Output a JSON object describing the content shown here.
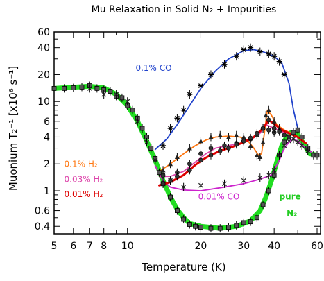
{
  "chart_data": {
    "type": "scatter",
    "title": "Mu Relaxation in Solid N₂ + Impurities",
    "xlabel": "Temperature (K)",
    "ylabel": "Muonium T₂⁻¹ [x10⁶ s⁻¹]",
    "x_scale": "log",
    "y_scale": "log",
    "xlim": [
      5,
      62
    ],
    "ylim": [
      0.33,
      60
    ],
    "x_ticks": [
      5,
      6,
      7,
      8,
      9,
      10,
      20,
      30,
      40,
      50,
      60
    ],
    "x_tick_labels": [
      "5",
      "6",
      "7",
      "8",
      "10",
      "20",
      "30",
      "40",
      "60"
    ],
    "x_tick_label_values": [
      5,
      6,
      7,
      8,
      10,
      20,
      30,
      40,
      60
    ],
    "y_ticks": [
      0.4,
      0.5,
      0.6,
      0.7,
      0.8,
      0.9,
      1,
      2,
      3,
      4,
      5,
      6,
      7,
      8,
      9,
      10,
      20,
      30,
      40,
      50,
      60
    ],
    "y_tick_labels": [
      "0.4",
      "0.6",
      "1",
      "2",
      "4",
      "6",
      "10",
      "20",
      "40",
      "60"
    ],
    "y_tick_label_values": [
      0.4,
      0.6,
      1,
      2,
      4,
      6,
      10,
      20,
      40,
      60
    ],
    "grid": false,
    "series": [
      {
        "name": "pure N₂",
        "color": "#22dd22",
        "marker": "square",
        "label_lines": [
          "pure",
          "N₂"
        ],
        "points": [
          [
            5,
            14
          ],
          [
            5.5,
            14
          ],
          [
            6,
            14.2
          ],
          [
            6.5,
            14.5
          ],
          [
            7,
            15
          ],
          [
            7.5,
            14
          ],
          [
            8,
            13.5
          ],
          [
            8.5,
            13
          ],
          [
            9,
            11.5
          ],
          [
            9.5,
            11
          ],
          [
            10,
            9
          ],
          [
            10.5,
            8
          ],
          [
            11,
            6.5
          ],
          [
            11.5,
            5
          ],
          [
            12,
            4
          ],
          [
            12.5,
            3
          ],
          [
            13,
            2.3
          ],
          [
            13.5,
            1.6
          ],
          [
            14,
            1.2
          ],
          [
            15,
            0.85
          ],
          [
            16,
            0.6
          ],
          [
            17,
            0.48
          ],
          [
            18,
            0.42
          ],
          [
            19,
            0.4
          ],
          [
            20,
            0.39
          ],
          [
            22,
            0.38
          ],
          [
            24,
            0.38
          ],
          [
            26,
            0.39
          ],
          [
            28,
            0.41
          ],
          [
            30,
            0.44
          ],
          [
            32,
            0.45
          ],
          [
            34,
            0.5
          ],
          [
            36,
            0.7
          ],
          [
            38,
            1.0
          ],
          [
            40,
            1.5
          ],
          [
            42,
            2.5
          ],
          [
            44,
            3.5
          ],
          [
            46,
            4.0
          ],
          [
            48,
            4.5
          ],
          [
            50,
            4.8
          ],
          [
            52,
            4.0
          ],
          [
            55,
            3.0
          ],
          [
            58,
            2.5
          ],
          [
            60,
            2.5
          ]
        ],
        "curve": [
          [
            5,
            14
          ],
          [
            7,
            14.8
          ],
          [
            8,
            14.2
          ],
          [
            9,
            12
          ],
          [
            10,
            9
          ],
          [
            11,
            6
          ],
          [
            12,
            3.6
          ],
          [
            13,
            2.2
          ],
          [
            14,
            1.3
          ],
          [
            15,
            0.85
          ],
          [
            16,
            0.62
          ],
          [
            17,
            0.5
          ],
          [
            18,
            0.43
          ],
          [
            20,
            0.4
          ],
          [
            24,
            0.38
          ],
          [
            28,
            0.4
          ],
          [
            32,
            0.46
          ],
          [
            35,
            0.6
          ],
          [
            37,
            0.85
          ],
          [
            39,
            1.3
          ],
          [
            41,
            2.1
          ],
          [
            43,
            3.2
          ],
          [
            45,
            4.0
          ],
          [
            47,
            4.5
          ],
          [
            50,
            4.3
          ],
          [
            53,
            3.3
          ],
          [
            56,
            2.6
          ],
          [
            60,
            2.5
          ]
        ]
      },
      {
        "name": "0.1% CO",
        "color": "#2244cc",
        "marker": "star",
        "points": [
          [
            14,
            3.2
          ],
          [
            15,
            5
          ],
          [
            16,
            6.5
          ],
          [
            17,
            8
          ],
          [
            18,
            12
          ],
          [
            20,
            15
          ],
          [
            22,
            20
          ],
          [
            25,
            26
          ],
          [
            28,
            32
          ],
          [
            30,
            38
          ],
          [
            32,
            40
          ],
          [
            35,
            36
          ],
          [
            38,
            34
          ],
          [
            40,
            32
          ],
          [
            42,
            28
          ],
          [
            44,
            20
          ]
        ],
        "curve": [
          [
            13,
            2.9
          ],
          [
            14.5,
            3.8
          ],
          [
            16,
            5.5
          ],
          [
            18,
            9
          ],
          [
            20,
            14
          ],
          [
            23,
            22
          ],
          [
            26,
            30
          ],
          [
            30,
            37
          ],
          [
            33,
            38
          ],
          [
            36,
            36
          ],
          [
            40,
            32
          ],
          [
            43,
            27
          ],
          [
            46,
            16
          ],
          [
            48,
            8
          ],
          [
            50,
            5
          ]
        ]
      },
      {
        "name": "0.01% CO",
        "color": "#cc22cc",
        "marker": "x",
        "points": [
          [
            7,
            14
          ],
          [
            8,
            12
          ],
          [
            9,
            12
          ],
          [
            10,
            10
          ],
          [
            11,
            6
          ],
          [
            12,
            3.5
          ],
          [
            13,
            2.2
          ],
          [
            14,
            1.5
          ],
          [
            15,
            1.3
          ],
          [
            17,
            1.1
          ],
          [
            20,
            1.15
          ],
          [
            25,
            1.2
          ],
          [
            30,
            1.3
          ],
          [
            35,
            1.4
          ],
          [
            38,
            1.5
          ],
          [
            40,
            1.7
          ],
          [
            42,
            2.5
          ],
          [
            44,
            3.2
          ],
          [
            46,
            3.6
          ],
          [
            48,
            3.8
          ],
          [
            50,
            3.5
          ],
          [
            52,
            3.2
          ],
          [
            55,
            2.8
          ]
        ],
        "curve": [
          [
            13,
            1.9
          ],
          [
            14,
            1.3
          ],
          [
            15,
            1.1
          ],
          [
            17,
            1.02
          ],
          [
            20,
            1.0
          ],
          [
            25,
            1.1
          ],
          [
            30,
            1.2
          ],
          [
            35,
            1.35
          ],
          [
            39,
            1.5
          ],
          [
            42,
            2.2
          ],
          [
            44,
            3.0
          ],
          [
            46,
            3.5
          ],
          [
            48,
            3.8
          ],
          [
            50,
            3.6
          ],
          [
            54,
            3.0
          ],
          [
            57,
            2.7
          ]
        ]
      },
      {
        "name": "0.03% H₂",
        "color": "#dd44aa",
        "marker": "circle",
        "points": [
          [
            14,
            1.5
          ],
          [
            16,
            1.6
          ],
          [
            18,
            2.0
          ],
          [
            20,
            2.6
          ],
          [
            22,
            3.0
          ],
          [
            25,
            3.2
          ],
          [
            28,
            3.4
          ],
          [
            30,
            3.6
          ],
          [
            32,
            3.8
          ],
          [
            34,
            4.2
          ],
          [
            36,
            5.0
          ],
          [
            38,
            4.8
          ],
          [
            40,
            4.5
          ]
        ],
        "curve": [
          [
            13.5,
            1.45
          ],
          [
            15,
            1.45
          ],
          [
            17,
            1.65
          ],
          [
            19,
            2.1
          ],
          [
            21,
            2.6
          ],
          [
            23,
            3.0
          ],
          [
            26,
            3.2
          ],
          [
            29,
            3.4
          ],
          [
            32,
            3.7
          ],
          [
            35,
            4.4
          ],
          [
            37,
            5.5
          ],
          [
            40,
            5.0
          ],
          [
            44,
            4.5
          ],
          [
            48,
            4.2
          ]
        ]
      },
      {
        "name": "0.1% H₂",
        "color": "#ff7711",
        "marker": "triangle",
        "points": [
          [
            14,
            1.7
          ],
          [
            15,
            2.0
          ],
          [
            16,
            2.4
          ],
          [
            18,
            3.0
          ],
          [
            20,
            3.6
          ],
          [
            22,
            4.0
          ],
          [
            24,
            4.2
          ],
          [
            26,
            4.0
          ],
          [
            28,
            4.2
          ],
          [
            30,
            4.0
          ],
          [
            32,
            3.2
          ],
          [
            34,
            2.5
          ],
          [
            35,
            2.4
          ],
          [
            36,
            3.5
          ],
          [
            37,
            7.0
          ],
          [
            38,
            8.0
          ],
          [
            40,
            6.0
          ],
          [
            42,
            5.0
          ]
        ],
        "curve": [
          [
            13.5,
            1.65
          ],
          [
            15,
            2.0
          ],
          [
            17,
            2.6
          ],
          [
            19,
            3.2
          ],
          [
            21,
            3.7
          ],
          [
            23,
            4.0
          ],
          [
            26,
            4.1
          ],
          [
            29,
            4.0
          ],
          [
            31,
            3.7
          ],
          [
            33,
            3.0
          ],
          [
            34.5,
            2.5
          ],
          [
            35.5,
            2.6
          ],
          [
            36.5,
            4.5
          ],
          [
            37.5,
            8.0
          ],
          [
            39,
            7.0
          ],
          [
            41,
            5.5
          ],
          [
            44,
            4.8
          ],
          [
            48,
            4.3
          ]
        ]
      },
      {
        "name": "0.01% H₂",
        "color": "#dd0000",
        "marker": "circle",
        "points": [
          [
            14,
            1.2
          ],
          [
            15,
            1.3
          ],
          [
            16,
            1.45
          ],
          [
            18,
            1.7
          ],
          [
            20,
            2.2
          ],
          [
            22,
            2.5
          ],
          [
            24,
            2.8
          ],
          [
            26,
            3.0
          ],
          [
            28,
            3.3
          ],
          [
            30,
            3.6
          ],
          [
            32,
            3.9
          ],
          [
            34,
            4.4
          ],
          [
            36,
            5.0
          ],
          [
            38,
            6.2
          ],
          [
            40,
            5.0
          ],
          [
            42,
            4.6
          ],
          [
            44,
            4.2
          ],
          [
            46,
            4.0
          ]
        ],
        "curve": [
          [
            13.5,
            1.15
          ],
          [
            15,
            1.25
          ],
          [
            17,
            1.5
          ],
          [
            19,
            1.95
          ],
          [
            21,
            2.35
          ],
          [
            24,
            2.8
          ],
          [
            27,
            3.1
          ],
          [
            30,
            3.5
          ],
          [
            33,
            4.0
          ],
          [
            36,
            5.0
          ],
          [
            38,
            6.2
          ],
          [
            40,
            5.6
          ],
          [
            43,
            4.8
          ],
          [
            47,
            4.3
          ],
          [
            50,
            4.0
          ],
          [
            54,
            3.4
          ]
        ]
      }
    ],
    "annotations": [
      {
        "text": "0.1% CO",
        "color": "#2244cc",
        "x": 10.8,
        "y": 22
      },
      {
        "text": "0.1% H₂",
        "color": "#ff7711",
        "x": 5.5,
        "y": 1.85
      },
      {
        "text": "0.03% H₂",
        "color": "#dd44aa",
        "x": 5.5,
        "y": 1.25
      },
      {
        "text": "0.01% H₂",
        "color": "#dd0000",
        "x": 5.5,
        "y": 0.85
      },
      {
        "text": "0.01% CO",
        "color": "#cc22cc",
        "x": 19.5,
        "y": 0.8
      },
      {
        "text": "pure",
        "color": "#22cc22",
        "x": 42,
        "y": 0.8
      },
      {
        "text": "N₂",
        "color": "#22cc22",
        "x": 45,
        "y": 0.52
      }
    ]
  }
}
